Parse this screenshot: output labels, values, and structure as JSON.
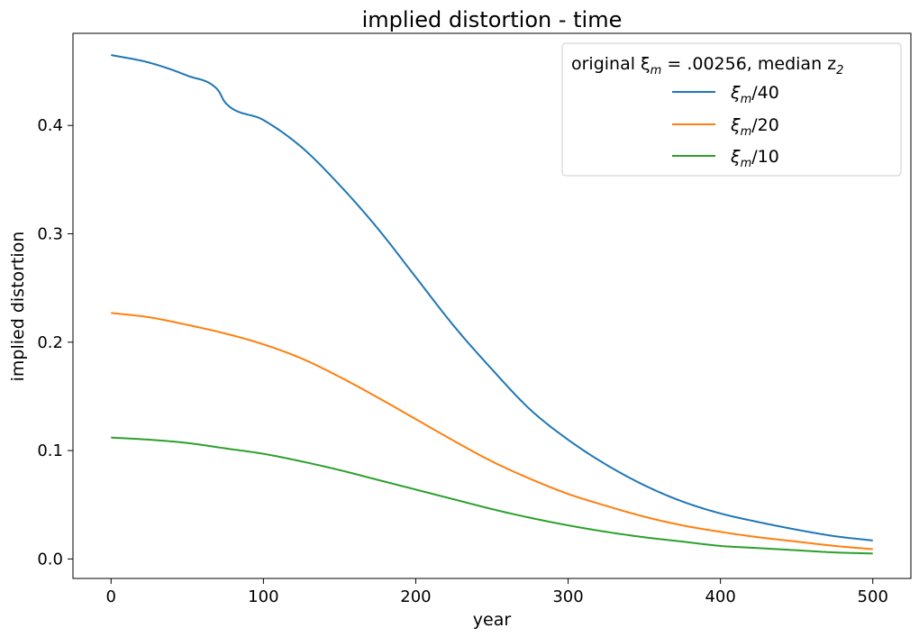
{
  "chart_data": {
    "type": "line",
    "title": "implied distortion - time",
    "xlabel": "year",
    "ylabel": "implied distortion",
    "xlim": [
      -25,
      525
    ],
    "ylim": [
      -0.018,
      0.485
    ],
    "x_ticks": [
      0,
      100,
      200,
      300,
      400,
      500
    ],
    "y_ticks": [
      0.0,
      0.1,
      0.2,
      0.3,
      0.4
    ],
    "x_tick_labels": [
      "0",
      "100",
      "200",
      "300",
      "400",
      "500"
    ],
    "y_tick_labels": [
      "0.0",
      "0.1",
      "0.2",
      "0.3",
      "0.4"
    ],
    "grid": false,
    "legend": {
      "title": "original ξ",
      "title_sub": "m",
      "title_rest": " = .00256, median z",
      "title_sub2": "2",
      "placement": "top-right",
      "entries": [
        {
          "sym": "ξ",
          "sub": "m",
          "rest": "/40"
        },
        {
          "sym": "ξ",
          "sub": "m",
          "rest": "/20"
        },
        {
          "sym": "ξ",
          "sub": "m",
          "rest": "/10"
        }
      ]
    },
    "series": [
      {
        "label_ref": 0,
        "color": "#1f77b4",
        "x": [
          0,
          25,
          50,
          70,
          75,
          100,
          125,
          150,
          175,
          200,
          225,
          250,
          275,
          300,
          325,
          350,
          375,
          400,
          425,
          450,
          475,
          500
        ],
        "y": [
          0.465,
          0.458,
          0.446,
          0.433,
          0.421,
          0.405,
          0.38,
          0.345,
          0.305,
          0.26,
          0.215,
          0.175,
          0.138,
          0.11,
          0.087,
          0.068,
          0.053,
          0.042,
          0.034,
          0.027,
          0.021,
          0.017
        ]
      },
      {
        "label_ref": 1,
        "color": "#ff7f0e",
        "x": [
          0,
          25,
          50,
          75,
          100,
          125,
          150,
          175,
          200,
          225,
          250,
          275,
          300,
          325,
          350,
          375,
          400,
          425,
          450,
          475,
          500
        ],
        "y": [
          0.227,
          0.223,
          0.216,
          0.208,
          0.198,
          0.185,
          0.168,
          0.149,
          0.129,
          0.109,
          0.09,
          0.074,
          0.06,
          0.049,
          0.039,
          0.031,
          0.025,
          0.02,
          0.016,
          0.012,
          0.009
        ]
      },
      {
        "label_ref": 2,
        "color": "#2ca02c",
        "x": [
          0,
          25,
          50,
          75,
          100,
          125,
          150,
          175,
          200,
          225,
          250,
          275,
          300,
          325,
          350,
          375,
          400,
          425,
          450,
          475,
          500
        ],
        "y": [
          0.112,
          0.11,
          0.107,
          0.102,
          0.097,
          0.09,
          0.082,
          0.073,
          0.064,
          0.055,
          0.046,
          0.038,
          0.031,
          0.025,
          0.02,
          0.016,
          0.012,
          0.01,
          0.008,
          0.006,
          0.005
        ]
      }
    ]
  }
}
